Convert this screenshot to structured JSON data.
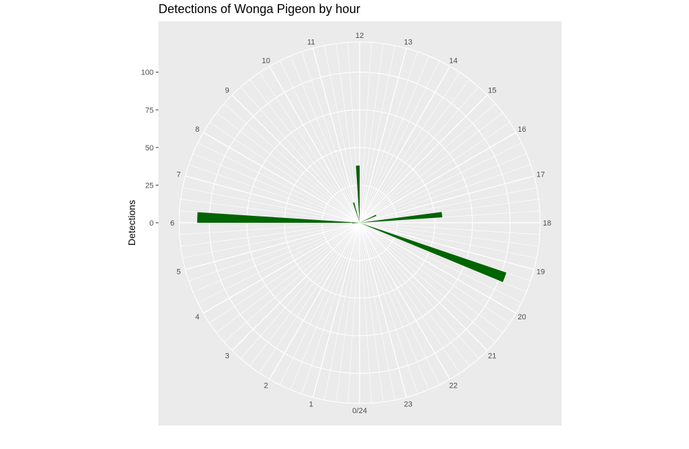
{
  "chart_data": {
    "type": "polar-bar",
    "title": "Detections of Wonga Pigeon by hour",
    "xlabel": "",
    "ylabel": "Detections",
    "hour_labels": [
      "0/24",
      "1",
      "2",
      "3",
      "4",
      "5",
      "6",
      "7",
      "8",
      "9",
      "10",
      "11",
      "12",
      "13",
      "14",
      "15",
      "16",
      "17",
      "18",
      "19",
      "20",
      "21",
      "22",
      "23"
    ],
    "y_ticks": [
      0,
      25,
      50,
      75,
      100
    ],
    "y_tick_labels": [
      "0",
      "25",
      "50",
      "75",
      "100"
    ],
    "ylim": [
      0,
      120
    ],
    "bar_color": "#006400",
    "panel_color": "#ebebeb",
    "grid_color": "#ffffff",
    "series": [
      {
        "bins": [
          {
            "hour": 5.75,
            "value": 5
          },
          {
            "hour": 6,
            "value": 108
          },
          {
            "hour": 10.75,
            "value": 14
          },
          {
            "hour": 11.75,
            "value": 38
          },
          {
            "hour": 16.25,
            "value": 12
          },
          {
            "hour": 17.5,
            "value": 55
          },
          {
            "hour": 19.25,
            "value": 103
          }
        ]
      }
    ]
  }
}
